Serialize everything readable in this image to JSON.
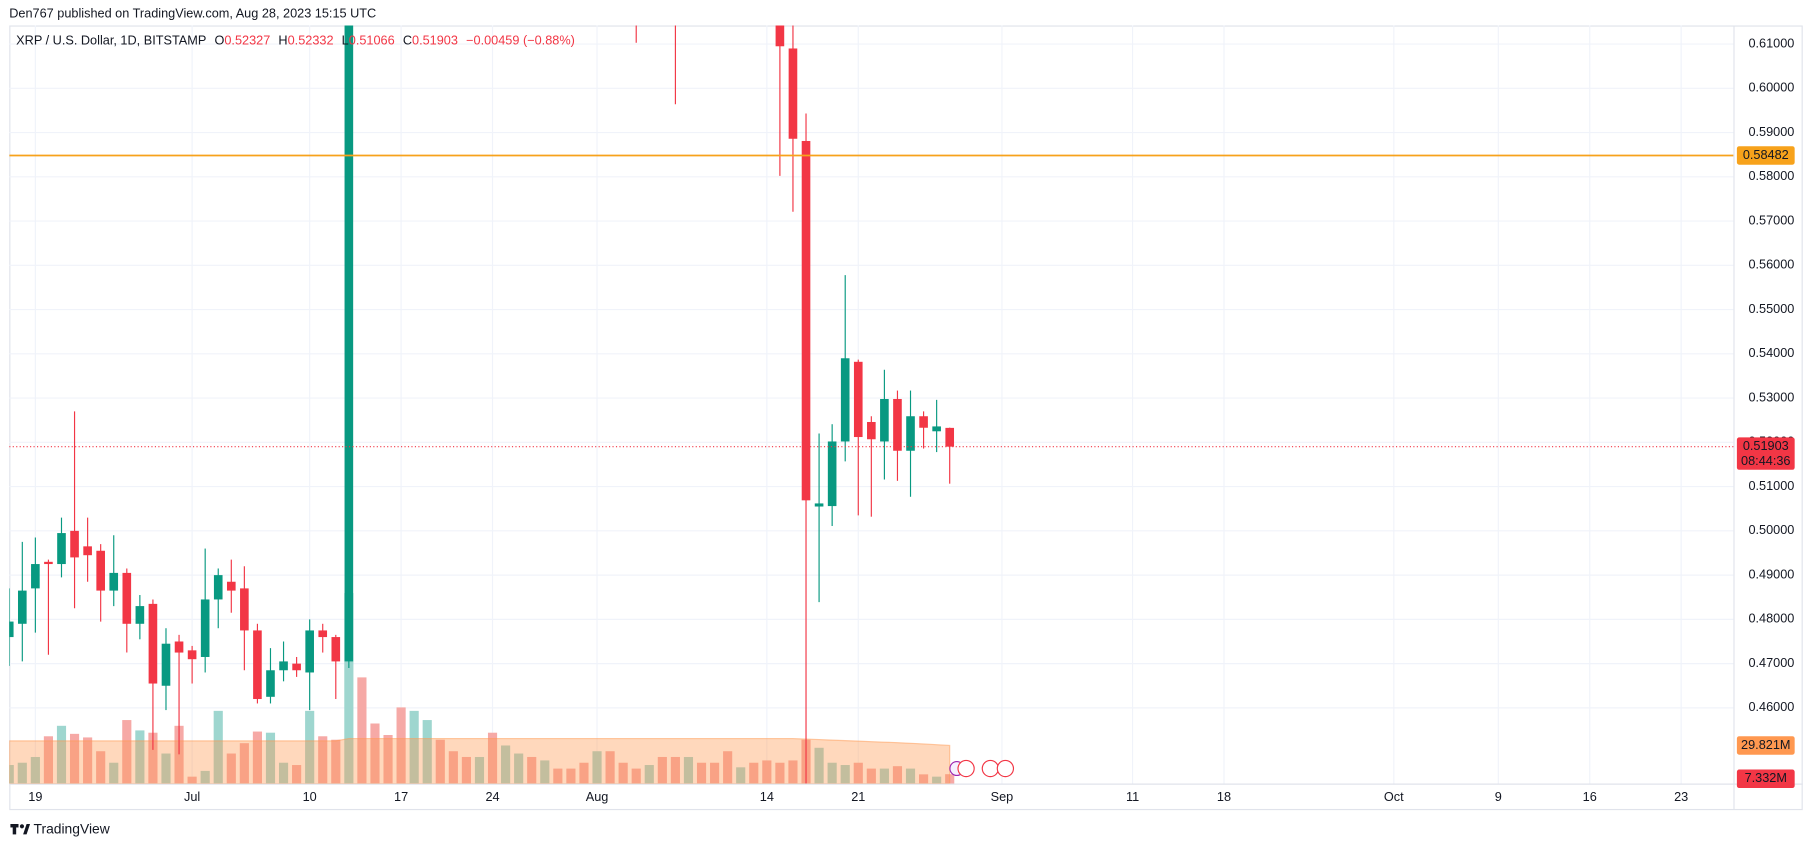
{
  "header": "Den767 published on TradingView.com, Aug 28, 2023 15:15 UTC",
  "footer": "TradingView",
  "chart_data": [
    {
      "type": "candlestick",
      "title": "XRP / U.S. Dollar, 1D, BITSTAMP",
      "legend": {
        "o": "O",
        "h": "H",
        "l": "L",
        "c": "C",
        "change": "−0.00459 (−0.88%)"
      },
      "x": [
        "2023-06-17",
        "2023-06-18",
        "2023-06-19",
        "2023-06-20",
        "2023-06-21",
        "2023-06-22",
        "2023-06-23",
        "2023-06-24",
        "2023-06-25",
        "2023-06-26",
        "2023-06-27",
        "2023-06-28",
        "2023-06-29",
        "2023-06-30",
        "2023-07-01",
        "2023-07-02",
        "2023-07-03",
        "2023-07-04",
        "2023-07-05",
        "2023-07-06",
        "2023-07-07",
        "2023-07-08",
        "2023-07-09",
        "2023-07-10",
        "2023-07-11",
        "2023-07-12",
        "2023-07-13",
        "2023-08-04",
        "2023-08-07",
        "2023-08-15",
        "2023-08-16",
        "2023-08-17",
        "2023-08-18",
        "2023-08-19",
        "2023-08-20",
        "2023-08-21",
        "2023-08-22",
        "2023-08-23",
        "2023-08-24",
        "2023-08-25",
        "2023-08-26",
        "2023-08-27",
        "2023-08-28"
      ],
      "open": [
        0.476,
        0.479,
        0.487,
        0.493,
        0.4925,
        0.5,
        0.4965,
        0.4955,
        0.4865,
        0.4905,
        0.479,
        0.4835,
        0.465,
        0.475,
        0.473,
        0.4715,
        0.4845,
        0.4885,
        0.487,
        0.4775,
        0.4625,
        0.4685,
        0.47,
        0.468,
        0.4775,
        0.476,
        0.4705,
        0.625,
        0.63,
        0.62,
        0.609,
        0.5881,
        0.5055,
        0.5056,
        0.5202,
        0.5382,
        0.5246,
        0.5202,
        0.5298,
        0.5181,
        0.5259,
        0.5225,
        0.52327
      ],
      "high": [
        0.487,
        0.4975,
        0.4985,
        0.4935,
        0.503,
        0.527,
        0.503,
        0.497,
        0.499,
        0.4915,
        0.4855,
        0.4845,
        0.478,
        0.4765,
        0.474,
        0.496,
        0.4915,
        0.4935,
        0.492,
        0.479,
        0.4735,
        0.475,
        0.4715,
        0.48,
        0.479,
        0.4765,
        0.935,
        0.63,
        0.635,
        0.625,
        0.615,
        0.5943,
        0.522,
        0.5241,
        0.5578,
        0.5387,
        0.5259,
        0.5364,
        0.5317,
        0.5317,
        0.527,
        0.5296,
        0.52332
      ],
      "low": [
        0.4695,
        0.4705,
        0.477,
        0.472,
        0.4895,
        0.4825,
        0.4885,
        0.4795,
        0.483,
        0.4725,
        0.4755,
        0.4505,
        0.4595,
        0.4495,
        0.4655,
        0.468,
        0.478,
        0.4815,
        0.4685,
        0.461,
        0.461,
        0.466,
        0.467,
        0.4595,
        0.4725,
        0.462,
        0.469,
        0.6103,
        0.5964,
        0.5802,
        0.5721,
        0.4398,
        0.4839,
        0.5011,
        0.5157,
        0.5035,
        0.5032,
        0.5116,
        0.5113,
        0.5077,
        0.5186,
        0.5178,
        0.51066
      ],
      "close": [
        0.4795,
        0.4865,
        0.4925,
        0.4925,
        0.4995,
        0.494,
        0.4945,
        0.4865,
        0.4905,
        0.479,
        0.483,
        0.4655,
        0.4745,
        0.4725,
        0.471,
        0.4845,
        0.49,
        0.4865,
        0.4775,
        0.462,
        0.4685,
        0.4705,
        0.4685,
        0.4775,
        0.476,
        0.4705,
        0.8135,
        0.62,
        0.62,
        0.6095,
        0.5886,
        0.5069,
        0.5062,
        0.5202,
        0.539,
        0.5212,
        0.5207,
        0.5298,
        0.5181,
        0.5259,
        0.5233,
        0.5236,
        0.51903
      ],
      "up_color": "#089981",
      "down_color": "#f23645",
      "hline": 0.58482,
      "hline_color": "#f7a21b",
      "countdown": "08:44:36",
      "xlim": [
        "2023-06-17",
        "2023-10-27"
      ],
      "xticks": [
        {
          "value": "2023-06-19",
          "label": "19"
        },
        {
          "value": "2023-07-01",
          "label": "Jul"
        },
        {
          "value": "2023-07-10",
          "label": "10"
        },
        {
          "value": "2023-07-17",
          "label": "17"
        },
        {
          "value": "2023-07-24",
          "label": "24"
        },
        {
          "value": "2023-08-01",
          "label": "Aug"
        },
        {
          "value": "2023-08-14",
          "label": "14"
        },
        {
          "value": "2023-08-21",
          "label": "21"
        },
        {
          "value": "2023-09-01",
          "label": "Sep"
        },
        {
          "value": "2023-09-11",
          "label": "11"
        },
        {
          "value": "2023-09-18",
          "label": "18"
        },
        {
          "value": "2023-10-01",
          "label": "Oct"
        },
        {
          "value": "2023-10-09",
          "label": "9"
        },
        {
          "value": "2023-10-16",
          "label": "16"
        },
        {
          "value": "2023-10-23",
          "label": "23"
        }
      ],
      "ylim": [
        0.4429,
        0.6142
      ],
      "yticks": [
        {
          "value": 0.46,
          "label": "0.46000"
        },
        {
          "value": 0.47,
          "label": "0.47000"
        },
        {
          "value": 0.48,
          "label": "0.48000"
        },
        {
          "value": 0.49,
          "label": "0.49000"
        },
        {
          "value": 0.5,
          "label": "0.50000"
        },
        {
          "value": 0.51,
          "label": "0.51000"
        },
        {
          "value": 0.52,
          "label": "0.52000"
        },
        {
          "value": 0.53,
          "label": "0.53000"
        },
        {
          "value": 0.54,
          "label": "0.54000"
        },
        {
          "value": 0.55,
          "label": "0.55000"
        },
        {
          "value": 0.56,
          "label": "0.56000"
        },
        {
          "value": 0.57,
          "label": "0.57000"
        },
        {
          "value": 0.58,
          "label": "0.58000"
        },
        {
          "value": 0.59,
          "label": "0.59000"
        },
        {
          "value": 0.6,
          "label": "0.60000"
        },
        {
          "value": 0.61,
          "label": "0.61000"
        }
      ],
      "grid": true
    },
    {
      "type": "bar",
      "x": [
        "2023-06-17",
        "2023-06-18",
        "2023-06-19",
        "2023-06-20",
        "2023-06-21",
        "2023-06-22",
        "2023-06-23",
        "2023-06-24",
        "2023-06-25",
        "2023-06-26",
        "2023-06-27",
        "2023-06-28",
        "2023-06-29",
        "2023-06-30",
        "2023-07-01",
        "2023-07-02",
        "2023-07-03",
        "2023-07-04",
        "2023-07-05",
        "2023-07-06",
        "2023-07-07",
        "2023-07-08",
        "2023-07-09",
        "2023-07-10",
        "2023-07-11",
        "2023-07-12",
        "2023-07-13",
        "2023-07-14",
        "2023-07-15",
        "2023-07-16",
        "2023-07-17",
        "2023-07-18",
        "2023-07-19",
        "2023-07-20",
        "2023-07-21",
        "2023-07-22",
        "2023-07-23",
        "2023-07-24",
        "2023-07-25",
        "2023-07-26",
        "2023-07-27",
        "2023-07-28",
        "2023-07-29",
        "2023-07-30",
        "2023-07-31",
        "2023-08-01",
        "2023-08-02",
        "2023-08-03",
        "2023-08-04",
        "2023-08-05",
        "2023-08-06",
        "2023-08-07",
        "2023-08-08",
        "2023-08-09",
        "2023-08-10",
        "2023-08-11",
        "2023-08-12",
        "2023-08-13",
        "2023-08-14",
        "2023-08-15",
        "2023-08-16",
        "2023-08-17",
        "2023-08-18",
        "2023-08-19",
        "2023-08-20",
        "2023-08-21",
        "2023-08-22",
        "2023-08-23",
        "2023-08-24",
        "2023-08-25",
        "2023-08-26",
        "2023-08-27",
        "2023-08-28"
      ],
      "values": [
        14.5,
        16.3,
        20.8,
        37.0,
        45.2,
        38.9,
        36.1,
        25.3,
        16.3,
        49.7,
        41.6,
        39.8,
        23.5,
        45.2,
        5.4,
        9.9,
        56.9,
        23.5,
        31.6,
        40.7,
        39.8,
        16.3,
        14.5,
        56.9,
        37.0,
        34.3,
        149.1,
        83.1,
        47.0,
        38.0,
        59.6,
        56.9,
        49.7,
        34.3,
        25.3,
        20.8,
        20.8,
        39.8,
        29.8,
        23.5,
        20.8,
        18.1,
        11.7,
        11.7,
        16.3,
        25.3,
        25.3,
        16.3,
        11.7,
        14.5,
        20.8,
        20.8,
        20.8,
        16.3,
        16.3,
        25.3,
        12.7,
        16.3,
        18.1,
        16.3,
        18.1,
        34.3,
        28.0,
        16.3,
        14.5,
        16.3,
        11.7,
        11.7,
        13.6,
        11.7,
        7.2,
        5.4,
        7.332
      ],
      "colors": [
        "#9ed6cf",
        "#9ed6cf",
        "#9ed6cf",
        "#f6a9a6",
        "#9ed6cf",
        "#f6a9a6",
        "#f6a9a6",
        "#f6a9a6",
        "#9ed6cf",
        "#f6a9a6",
        "#9ed6cf",
        "#f6a9a6",
        "#9ed6cf",
        "#f6a9a6",
        "#f6a9a6",
        "#9ed6cf",
        "#9ed6cf",
        "#f6a9a6",
        "#f6a9a6",
        "#f6a9a6",
        "#9ed6cf",
        "#9ed6cf",
        "#f6a9a6",
        "#9ed6cf",
        "#f6a9a6",
        "#f6a9a6",
        "#9ed6cf",
        "#f6a9a6",
        "#f6a9a6",
        "#f6a9a6",
        "#f6a9a6",
        "#9ed6cf",
        "#9ed6cf",
        "#f6a9a6",
        "#f6a9a6",
        "#f6a9a6",
        "#9ed6cf",
        "#f6a9a6",
        "#9ed6cf",
        "#9ed6cf",
        "#f6a9a6",
        "#9ed6cf",
        "#f6a9a6",
        "#f6a9a6",
        "#f6a9a6",
        "#9ed6cf",
        "#f6a9a6",
        "#f6a9a6",
        "#f6a9a6",
        "#9ed6cf",
        "#f6a9a6",
        "#f6a9a6",
        "#9ed6cf",
        "#f6a9a6",
        "#f6a9a6",
        "#f6a9a6",
        "#9ed6cf",
        "#f6a9a6",
        "#f6a9a6",
        "#f6a9a6",
        "#f6a9a6",
        "#f6a9a6",
        "#9ed6cf",
        "#9ed6cf",
        "#9ed6cf",
        "#f6a9a6",
        "#f6a9a6",
        "#9ed6cf",
        "#f6a9a6",
        "#9ed6cf",
        "#f6a9a6",
        "#9ed6cf",
        "#f6a9a6"
      ],
      "ma_values": [
        33.4,
        33.4,
        33.4,
        33.4,
        33.4,
        33.4,
        33.4,
        33.4,
        33.4,
        33.4,
        33.4,
        33.4,
        33.4,
        33.4,
        33.4,
        33.4,
        33.4,
        33.4,
        33.4,
        33.4,
        33.4,
        33.4,
        33.4,
        33.4,
        33.4,
        33.4,
        35.2,
        35.2,
        35.2,
        35.2,
        35.2,
        35.2,
        35.2,
        35.2,
        35.2,
        35.2,
        35.2,
        35.2,
        35.2,
        35.2,
        35.2,
        35.2,
        35.2,
        35.2,
        35.2,
        35.2,
        35.2,
        35.2,
        35.2,
        35.2,
        35.2,
        35.2,
        35.2,
        35.2,
        35.2,
        35.2,
        35.2,
        35.2,
        35.2,
        35.2,
        35.2,
        34.8,
        34.4,
        34.0,
        33.6,
        33.2,
        32.8,
        32.4,
        32.0,
        31.5,
        31.0,
        30.4,
        29.821
      ],
      "ma_color": "#ff9850",
      "ma_label": "29.821M",
      "last_label": "7.332M",
      "ylim": [
        0,
        180
      ]
    }
  ]
}
